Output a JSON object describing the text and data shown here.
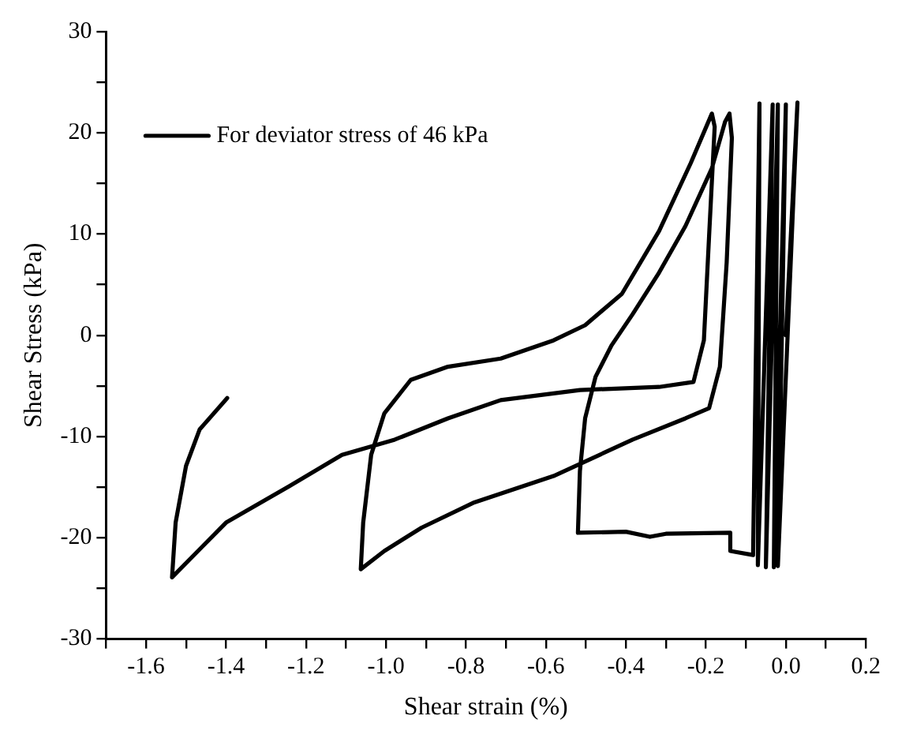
{
  "chart_data": {
    "type": "line",
    "xlabel": "Shear strain (%)",
    "ylabel": "Shear Stress (kPa)",
    "series": [
      {
        "name": "For deviator stress of 46 kPa",
        "color": "#000000",
        "x": [
          0.0,
          0.029,
          -0.02,
          0.0,
          -0.03,
          -0.02,
          -0.05,
          -0.033,
          -0.07,
          -0.066,
          -0.082,
          -0.139,
          -0.139,
          -0.3,
          -0.34,
          -0.4,
          -0.52,
          -0.515,
          -0.502,
          -0.476,
          -0.436,
          -0.383,
          -0.317,
          -0.251,
          -0.185,
          -0.152,
          -0.141,
          -0.135,
          -0.148,
          -0.165,
          -0.192,
          -0.251,
          -0.383,
          -0.581,
          -0.779,
          -0.911,
          -1.004,
          -1.063,
          -1.057,
          -1.037,
          -1.004,
          -0.938,
          -0.845,
          -0.713,
          -0.581,
          -0.502,
          -0.41,
          -0.317,
          -0.238,
          -0.185,
          -0.178,
          -0.192,
          -0.205,
          -0.231,
          -0.317,
          -0.515,
          -0.713,
          -0.845,
          -0.978,
          -1.11,
          -1.242,
          -1.4,
          -1.535,
          -1.526,
          -1.5,
          -1.466,
          -1.397
        ],
        "values": [
          0,
          23.0,
          -22.8,
          22.8,
          -22.9,
          22.8,
          -22.9,
          22.8,
          -22.7,
          22.9,
          -21.7,
          -21.3,
          -19.5,
          -19.6,
          -19.9,
          -19.4,
          -19.5,
          -13.4,
          -8.2,
          -4.1,
          -1.0,
          2.1,
          6.2,
          10.8,
          16.5,
          21.1,
          21.9,
          19.5,
          7.2,
          -3.1,
          -7.2,
          -8.2,
          -10.3,
          -13.9,
          -16.5,
          -19.0,
          -21.3,
          -23.1,
          -18.5,
          -11.8,
          -7.7,
          -4.4,
          -3.1,
          -2.3,
          -0.5,
          1.0,
          4.1,
          10.3,
          17.0,
          21.9,
          20.6,
          9.8,
          -0.5,
          -4.6,
          -5.1,
          -5.4,
          -6.4,
          -8.2,
          -10.3,
          -11.8,
          -14.9,
          -18.5,
          -23.9,
          -18.5,
          -12.9,
          -9.3,
          -6.2
        ]
      }
    ],
    "xlim": [
      -1.7,
      0.2
    ],
    "xticks": [
      {
        "value": -1.7,
        "label": null
      },
      -1.6,
      {
        "value": -1.5,
        "label": null
      },
      -1.4,
      {
        "value": -1.3,
        "label": null
      },
      -1.2,
      {
        "value": -1.1,
        "label": null
      },
      {
        "value": -1.0,
        "label": "-1.0"
      },
      {
        "value": -0.9,
        "label": null
      },
      -0.8,
      {
        "value": -0.7,
        "label": null
      },
      -0.6,
      {
        "value": -0.5,
        "label": null
      },
      -0.4,
      {
        "value": -0.3,
        "label": null
      },
      -0.2,
      {
        "value": -0.1,
        "label": null
      },
      {
        "value": 0,
        "label": "0.0"
      },
      {
        "value": 0.1,
        "label": null
      },
      0.2
    ],
    "ylim": [
      -30,
      30
    ],
    "yticks": [
      -30,
      {
        "value": -25,
        "label": null
      },
      -20,
      {
        "value": -15,
        "label": null
      },
      -10,
      {
        "value": -5,
        "label": null
      },
      0,
      {
        "value": 5,
        "label": null
      },
      10,
      {
        "value": 15,
        "label": null
      },
      20,
      {
        "value": 25,
        "label": null
      },
      30
    ],
    "legend": "top left",
    "grid": false,
    "marker": "none",
    "line_style": "solid"
  }
}
